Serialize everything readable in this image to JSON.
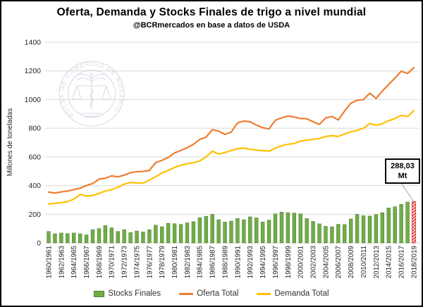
{
  "header": {
    "title": "Oferta, Demanda y Stocks Finales de trigo a nivel mundial",
    "subtitle": "@BCRmercados en base a datos de USDA"
  },
  "watermark": {
    "text": "BOLSA DE COMERCIO DE ROSARIO"
  },
  "annotation": {
    "line1": "288,03",
    "line2": "Mt",
    "target_series": "Stocks Finales",
    "target_category": "2018/2019"
  },
  "legend": {
    "items": [
      {
        "label": "Stocks Finales",
        "color": "#70AD47",
        "marker": "bar"
      },
      {
        "label": "Oferta Total",
        "color": "#ED7D31",
        "marker": "line"
      },
      {
        "label": "Demanda Total",
        "color": "#FFC000",
        "marker": "line"
      }
    ]
  },
  "chart_data": {
    "type": "combo_bar_line",
    "title": "Oferta, Demanda y Stocks Finales de trigo a nivel mundial",
    "subtitle": "@BCRmercados en base a datos de USDA",
    "ylabel": "Millones de toneladas",
    "xlabel": "",
    "ylim": [
      0,
      1400
    ],
    "yticks": [
      0,
      200,
      400,
      600,
      800,
      1000,
      1200,
      1400
    ],
    "grid": "horizontal",
    "legend_position": "bottom",
    "x_tick_every": 2,
    "categories": [
      "1960/1961",
      "1961/1962",
      "1962/1963",
      "1963/1964",
      "1964/1965",
      "1965/1966",
      "1966/1967",
      "1967/1968",
      "1968/1969",
      "1969/1970",
      "1970/1971",
      "1971/1972",
      "1972/1973",
      "1973/1974",
      "1974/1975",
      "1975/1976",
      "1976/1977",
      "1977/1978",
      "1978/1979",
      "1979/1980",
      "1980/1981",
      "1981/1982",
      "1982/1983",
      "1983/1984",
      "1984/1985",
      "1985/1986",
      "1986/1987",
      "1987/1988",
      "1988/1989",
      "1989/1990",
      "1990/1991",
      "1991/1992",
      "1992/1993",
      "1993/1994",
      "1994/1995",
      "1995/1996",
      "1996/1997",
      "1997/1998",
      "1998/1999",
      "1999/2000",
      "2000/2001",
      "2001/2002",
      "2002/2003",
      "2003/2004",
      "2004/2005",
      "2005/2006",
      "2006/2007",
      "2007/2008",
      "2008/2009",
      "2009/2010",
      "2010/2011",
      "2011/2012",
      "2012/2013",
      "2013/2014",
      "2014/2015",
      "2015/2016",
      "2016/2017",
      "2017/2018",
      "2018/2019"
    ],
    "series": [
      {
        "name": "Stocks Finales",
        "type": "bar",
        "color": "#70AD47",
        "values": [
          80,
          64,
          69,
          65,
          69,
          64,
          56,
          92,
          100,
          121,
          105,
          80,
          92,
          72,
          83,
          77,
          92,
          124,
          113,
          137,
          134,
          129,
          140,
          148,
          175,
          185,
          199,
          162,
          145,
          152,
          170,
          162,
          182,
          175,
          146,
          159,
          203,
          215,
          211,
          208,
          203,
          170,
          150,
          133,
          116,
          113,
          130,
          128,
          167,
          199,
          190,
          187,
          198,
          211,
          244,
          252,
          269,
          285,
          288.03
        ],
        "highlight_last": {
          "pattern": "diagonal-hatch",
          "color": "#E02B2B",
          "label": "288,03 Mt"
        }
      },
      {
        "name": "Oferta Total",
        "type": "line",
        "color": "#ED7D31",
        "values": [
          355,
          348,
          356,
          362,
          372,
          382,
          400,
          415,
          445,
          452,
          468,
          461,
          473,
          490,
          497,
          499,
          506,
          560,
          576,
          596,
          628,
          645,
          665,
          688,
          722,
          738,
          790,
          780,
          757,
          773,
          838,
          850,
          845,
          822,
          804,
          795,
          856,
          873,
          885,
          878,
          868,
          866,
          845,
          827,
          872,
          882,
          858,
          920,
          975,
          995,
          1000,
          1045,
          1008,
          1060,
          1105,
          1150,
          1198,
          1182,
          1222
        ]
      },
      {
        "name": "Demanda Total",
        "type": "line",
        "color": "#FFC000",
        "values": [
          272,
          276,
          281,
          288,
          306,
          339,
          327,
          331,
          345,
          362,
          372,
          388,
          410,
          422,
          419,
          417,
          438,
          462,
          488,
          506,
          527,
          542,
          552,
          560,
          572,
          600,
          640,
          620,
          630,
          645,
          657,
          662,
          653,
          648,
          644,
          640,
          662,
          678,
          688,
          694,
          710,
          717,
          722,
          728,
          743,
          748,
          743,
          760,
          775,
          785,
          800,
          833,
          820,
          832,
          852,
          868,
          890,
          882,
          922
        ]
      }
    ]
  }
}
